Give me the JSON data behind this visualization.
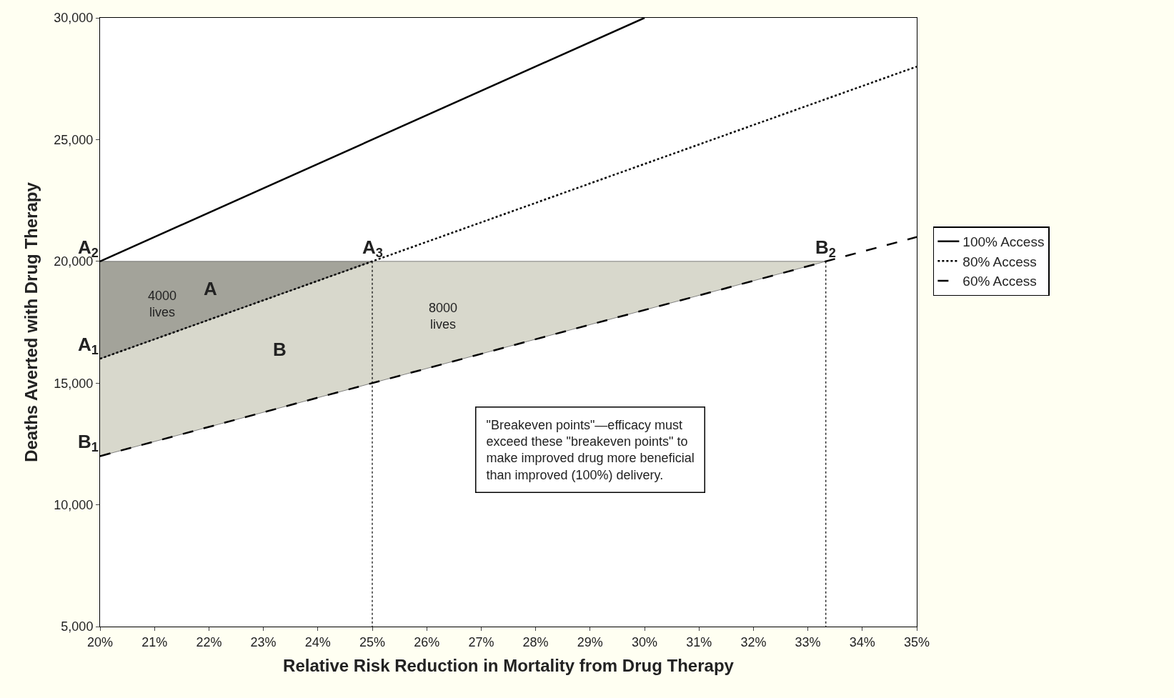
{
  "chart_data": {
    "type": "line",
    "xlabel": "Relative Risk Reduction in Mortality from Drug Therapy",
    "ylabel": "Deaths Averted with Drug Therapy",
    "xlim": [
      20,
      35
    ],
    "xticks": [
      {
        "value": 20,
        "label": "20%"
      },
      {
        "value": 21,
        "label": "21%"
      },
      {
        "value": 22,
        "label": "22%"
      },
      {
        "value": 23,
        "label": "23%"
      },
      {
        "value": 24,
        "label": "24%"
      },
      {
        "value": 25,
        "label": "25%"
      },
      {
        "value": 26,
        "label": "26%"
      },
      {
        "value": 27,
        "label": "27%"
      },
      {
        "value": 28,
        "label": "28%"
      },
      {
        "value": 29,
        "label": "29%"
      },
      {
        "value": 30,
        "label": "30%"
      },
      {
        "value": 31,
        "label": "31%"
      },
      {
        "value": 32,
        "label": "32%"
      },
      {
        "value": 33,
        "label": "33%"
      },
      {
        "value": 34,
        "label": "34%"
      },
      {
        "value": 35,
        "label": "35%"
      }
    ],
    "ylim": [
      5000,
      30000
    ],
    "yticks": [
      {
        "value": 5000,
        "label": "5,000"
      },
      {
        "value": 10000,
        "label": "10,000"
      },
      {
        "value": 15000,
        "label": "15,000"
      },
      {
        "value": 20000,
        "label": "20,000"
      },
      {
        "value": 25000,
        "label": "25,000"
      },
      {
        "value": 30000,
        "label": "30,000"
      }
    ],
    "legend": "right",
    "marker": "none",
    "series": [
      {
        "type": "area",
        "color": "#d8d8cc",
        "x": [
          20,
          25,
          33.33,
          20
        ],
        "values": [
          16000,
          20000,
          20000,
          12000
        ]
      },
      {
        "type": "area",
        "color": "#a3a39a",
        "x": [
          20,
          25,
          20
        ],
        "values": [
          20000,
          20000,
          16000
        ]
      },
      {
        "name": "100% Access",
        "color": "#000000",
        "line_style": "solid",
        "x": [
          20,
          30
        ],
        "values": [
          20000,
          30000
        ]
      },
      {
        "name": "80% Access",
        "color": "#000000",
        "line_style": "dotted",
        "x": [
          20,
          35
        ],
        "values": [
          16000,
          28000
        ]
      },
      {
        "name": "60% Access",
        "color": "#000000",
        "line_style": "dashed",
        "x": [
          20,
          35
        ],
        "values": [
          12000,
          21000
        ]
      },
      {
        "color": "#000000",
        "line_style": "dotted",
        "x": [
          25,
          25
        ],
        "values": [
          20000,
          5000
        ]
      },
      {
        "color": "#000000",
        "line_style": "dotted",
        "x": [
          33.33,
          33.33
        ],
        "values": [
          20000,
          5000
        ]
      }
    ],
    "annotations": [
      {
        "text": "A$_{2}$",
        "x": 20,
        "y": 20000
      },
      {
        "text": "A$_{3}$",
        "x": 25,
        "y": 20000
      },
      {
        "text": "A$_{1}$",
        "x": 20,
        "y": 16000
      },
      {
        "text": "B$_{1}$",
        "x": 20,
        "y": 12000
      },
      {
        "text": "B$_{2}$",
        "x": 33.33,
        "y": 20000
      },
      "A",
      "B",
      "4000\nlives",
      "8000\nlives",
      "\"Breakeven points\"—efficacy must\nexceed these \"breakeven points\" to\nmake improved drug more beneficial\nthan improved (100%) delivery."
    ]
  }
}
